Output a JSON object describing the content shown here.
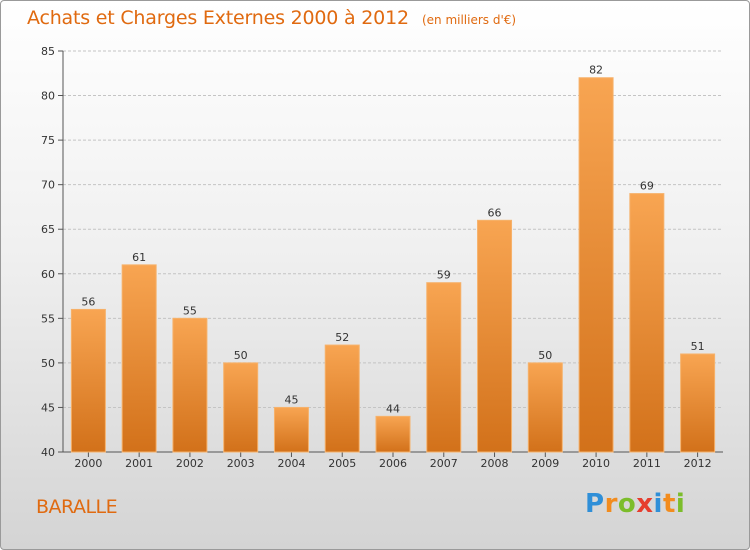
{
  "header": {
    "title": "Achats et Charges Externes 2000 à 2012",
    "subtitle": "(en milliers d'€)"
  },
  "footer": {
    "commune": "BARALLE",
    "logo_letters": [
      "P",
      "r",
      "o",
      "x",
      "i",
      "t",
      "i"
    ],
    "logo_colors": [
      "#2f8fd8",
      "#f28c1e",
      "#7cbd2b",
      "#e63d2e",
      "#2f8fd8",
      "#f28c1e",
      "#7cbd2b"
    ]
  },
  "chart_data": {
    "type": "bar",
    "title": "Achats et Charges Externes 2000 à 2012",
    "subtitle": "(en milliers d'€)",
    "categories": [
      "2000",
      "2001",
      "2002",
      "2003",
      "2004",
      "2005",
      "2006",
      "2007",
      "2008",
      "2009",
      "2010",
      "2011",
      "2012"
    ],
    "values": [
      56,
      61,
      55,
      50,
      45,
      52,
      44,
      59,
      66,
      50,
      82,
      69,
      51
    ],
    "ylim": [
      40,
      85
    ],
    "yticks": [
      40,
      45,
      50,
      55,
      60,
      65,
      70,
      75,
      80,
      85
    ],
    "xlabel": "",
    "ylabel": "",
    "grid": true,
    "bar_color": "#f0922e"
  }
}
